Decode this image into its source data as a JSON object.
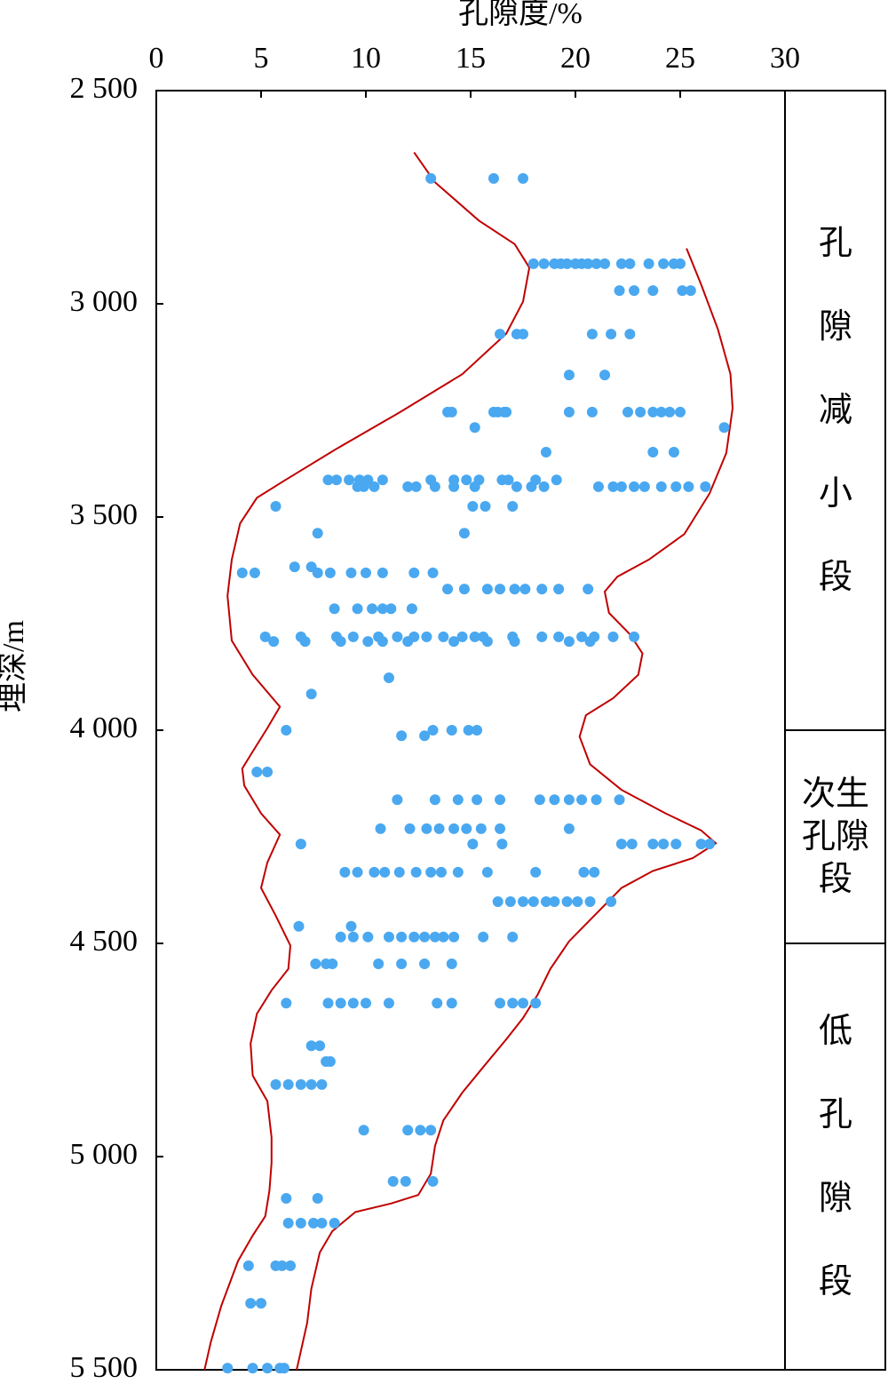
{
  "chart_data": {
    "type": "scatter",
    "x_label": "孔隙度/%",
    "y_label": "埋深/m",
    "xlim": [
      0,
      30
    ],
    "xticks": [
      0,
      5,
      10,
      15,
      20,
      25,
      30
    ],
    "ylim": [
      2500,
      5500
    ],
    "y_inverted": true,
    "yticks": [
      {
        "value": 2500,
        "label": "2 500"
      },
      {
        "value": 3000,
        "label": "3 000"
      },
      {
        "value": 3500,
        "label": "3 500"
      },
      {
        "value": 4000,
        "label": "4 000"
      },
      {
        "value": 4500,
        "label": "4 500"
      },
      {
        "value": 5000,
        "label": "5 000"
      },
      {
        "value": 5500,
        "label": "5 500"
      }
    ],
    "color": "#4aa8f0",
    "groups": [
      {
        "depth": 2706,
        "porosity": [
          13.1,
          16.1,
          17.5
        ]
      },
      {
        "depth": 2906,
        "porosity": [
          18.0,
          18.5,
          19.0,
          19.3,
          19.6,
          20.0,
          20.3,
          20.6,
          21.0,
          21.4,
          22.2,
          22.6,
          23.5,
          24.2,
          24.7,
          25.0
        ]
      },
      {
        "depth": 2969,
        "porosity": [
          22.1,
          22.8,
          23.7,
          25.1,
          25.5
        ]
      },
      {
        "depth": 3071,
        "porosity": [
          16.4,
          17.2,
          17.5,
          20.8,
          21.7,
          22.6
        ]
      },
      {
        "depth": 3167,
        "porosity": [
          19.7,
          21.4
        ]
      },
      {
        "depth": 3254,
        "porosity": [
          13.9,
          14.1,
          16.1,
          16.3,
          16.6,
          16.7,
          19.7,
          20.8,
          22.5,
          23.1,
          23.7,
          24.1,
          24.5,
          25.0
        ]
      },
      {
        "depth": 3290,
        "porosity": [
          15.2,
          27.1
        ]
      },
      {
        "depth": 3348,
        "porosity": [
          18.6,
          23.7,
          24.7
        ]
      },
      {
        "depth": 3413,
        "porosity": [
          8.2,
          8.6,
          9.2,
          9.7,
          10.1,
          10.8,
          13.1,
          14.2,
          14.8,
          15.4,
          16.5,
          16.8,
          18.1,
          19.1
        ]
      },
      {
        "depth": 3429,
        "porosity": [
          9.6,
          9.9,
          10.4,
          12.0,
          12.4,
          13.3,
          14.2,
          15.2,
          17.2,
          17.9,
          18.5,
          21.1,
          21.8,
          22.2,
          22.8,
          23.3,
          24.1,
          24.8,
          25.4,
          26.2
        ]
      },
      {
        "depth": 3475,
        "porosity": [
          5.7,
          15.1,
          15.7,
          17.0
        ]
      },
      {
        "depth": 3538,
        "porosity": [
          7.7,
          14.7
        ]
      },
      {
        "depth": 3617,
        "porosity": [
          6.6,
          7.4
        ]
      },
      {
        "depth": 3631,
        "porosity": [
          4.1,
          4.7,
          7.7,
          8.3,
          9.3,
          10.0,
          10.8,
          12.3,
          13.2
        ]
      },
      {
        "depth": 3669,
        "porosity": [
          13.9,
          14.7,
          15.8,
          16.4,
          17.1,
          17.6,
          18.4,
          19.2,
          20.6
        ]
      },
      {
        "depth": 3715,
        "porosity": [
          8.5,
          9.6,
          10.3,
          10.8,
          11.2,
          12.2
        ]
      },
      {
        "depth": 3781,
        "porosity": [
          5.2,
          6.9,
          8.6,
          9.4,
          10.6,
          11.5,
          12.3,
          12.9,
          13.7,
          14.6,
          15.2,
          15.6,
          17.0,
          18.4,
          19.2,
          20.3,
          20.9,
          21.8,
          22.8
        ]
      },
      {
        "depth": 3792,
        "porosity": [
          5.6,
          7.1,
          8.8,
          10.1,
          10.8,
          12.0,
          14.2,
          15.8,
          17.1,
          19.7,
          20.7
        ]
      },
      {
        "depth": 3877,
        "porosity": [
          11.1
        ]
      },
      {
        "depth": 3915,
        "porosity": [
          7.4
        ]
      },
      {
        "depth": 4000,
        "porosity": [
          6.2,
          13.2,
          14.1,
          14.9,
          15.3
        ]
      },
      {
        "depth": 4013,
        "porosity": [
          11.7,
          12.8
        ]
      },
      {
        "depth": 4098,
        "porosity": [
          4.8,
          5.3
        ]
      },
      {
        "depth": 4163,
        "porosity": [
          11.5,
          13.3,
          14.4,
          15.3,
          16.4,
          18.3,
          19.0,
          19.7,
          20.3,
          21.0,
          22.1
        ]
      },
      {
        "depth": 4231,
        "porosity": [
          10.7,
          12.1,
          12.9,
          13.5,
          14.2,
          14.8,
          15.5,
          16.4,
          19.7
        ]
      },
      {
        "depth": 4267,
        "porosity": [
          6.9,
          15.1,
          16.5,
          22.2,
          22.7,
          23.7,
          24.2,
          24.8,
          26.0,
          26.4
        ]
      },
      {
        "depth": 4333,
        "porosity": [
          9.0,
          9.6,
          10.4,
          10.9,
          11.6,
          12.4,
          13.1,
          13.6,
          14.4,
          15.8,
          18.1,
          20.4,
          20.9
        ]
      },
      {
        "depth": 4402,
        "porosity": [
          16.3,
          16.9,
          17.5,
          18.0,
          18.6,
          19.0,
          19.6,
          20.1,
          20.7,
          21.7
        ]
      },
      {
        "depth": 4460,
        "porosity": [
          6.8,
          9.3
        ]
      },
      {
        "depth": 4485,
        "porosity": [
          8.8,
          9.4,
          10.1,
          11.1,
          11.7,
          12.3,
          12.8,
          13.3,
          13.7,
          14.2,
          15.6,
          17.0
        ]
      },
      {
        "depth": 4548,
        "porosity": [
          7.6,
          8.1,
          8.4,
          10.6,
          11.7,
          12.8,
          14.1
        ]
      },
      {
        "depth": 4640,
        "porosity": [
          6.2,
          8.2,
          8.8,
          9.4,
          10.0,
          11.1,
          13.4,
          14.1,
          16.4,
          17.0,
          17.5,
          18.1
        ]
      },
      {
        "depth": 4740,
        "porosity": [
          7.4,
          7.8
        ]
      },
      {
        "depth": 4777,
        "porosity": [
          8.1,
          8.3
        ]
      },
      {
        "depth": 4831,
        "porosity": [
          5.7,
          6.3,
          6.9,
          7.4,
          7.9
        ]
      },
      {
        "depth": 4938,
        "porosity": [
          9.9,
          12.0,
          12.6,
          13.1
        ]
      },
      {
        "depth": 5058,
        "porosity": [
          11.3,
          11.9,
          13.2
        ]
      },
      {
        "depth": 5098,
        "porosity": [
          6.2,
          7.7
        ]
      },
      {
        "depth": 5156,
        "porosity": [
          6.3,
          6.9,
          7.5,
          7.9,
          8.5
        ]
      },
      {
        "depth": 5256,
        "porosity": [
          4.4,
          5.7,
          6.0,
          6.4
        ]
      },
      {
        "depth": 5344,
        "porosity": [
          4.5,
          5.0
        ]
      },
      {
        "depth": 5496,
        "porosity": [
          3.4,
          4.6,
          5.3,
          5.9,
          6.1
        ]
      }
    ],
    "envelopes": [
      {
        "color": "#c00000",
        "porosity": [
          12.3,
          13.3,
          15.4,
          17.1,
          17.8,
          17.5,
          16.7,
          14.6,
          11.6,
          8.6,
          6.1,
          4.8,
          4.0,
          3.6,
          3.4,
          3.6,
          4.6,
          5.9,
          5.3,
          4.6,
          4.1,
          4.2,
          5.0,
          5.9,
          5.3,
          5.0,
          5.7,
          6.4,
          6.3,
          5.5,
          4.8,
          4.5,
          4.6,
          5.3,
          5.5,
          5.5,
          5.4,
          5.2,
          4.6,
          3.9,
          3.1,
          2.6,
          2.3
        ],
        "depth": [
          2645,
          2715,
          2805,
          2860,
          2915,
          2995,
          3070,
          3165,
          3255,
          3340,
          3415,
          3455,
          3515,
          3600,
          3685,
          3790,
          3870,
          3945,
          3995,
          4050,
          4090,
          4130,
          4195,
          4245,
          4310,
          4370,
          4435,
          4505,
          4560,
          4610,
          4665,
          4735,
          4810,
          4870,
          4955,
          5015,
          5080,
          5140,
          5185,
          5245,
          5350,
          5435,
          5500
        ]
      },
      {
        "color": "#c00000",
        "porosity": [
          25.3,
          26.0,
          26.8,
          27.4,
          27.5,
          27.2,
          26.4,
          25.2,
          23.5,
          22.0,
          21.4,
          21.6,
          22.6,
          23.2,
          23.0,
          21.8,
          20.5,
          20.2,
          20.7,
          22.2,
          24.3,
          26.0,
          26.7,
          25.6,
          23.7,
          22.2,
          20.9,
          19.7,
          18.8,
          18.2,
          17.5,
          16.7,
          15.6,
          14.6,
          13.7,
          13.3,
          13.1,
          12.5,
          11.2,
          9.5,
          8.4,
          7.8,
          7.4,
          7.2,
          6.7
        ],
        "depth": [
          2870,
          2955,
          3060,
          3165,
          3245,
          3350,
          3445,
          3540,
          3600,
          3640,
          3675,
          3725,
          3775,
          3820,
          3870,
          3925,
          3965,
          4015,
          4080,
          4140,
          4195,
          4235,
          4265,
          4300,
          4330,
          4370,
          4435,
          4495,
          4560,
          4620,
          4675,
          4725,
          4790,
          4850,
          4915,
          4975,
          5040,
          5090,
          5110,
          5130,
          5175,
          5225,
          5310,
          5390,
          5500
        ]
      }
    ],
    "zones": [
      {
        "label": "孔隙减小段",
        "from": 2500,
        "to": 4000
      },
      {
        "label": "次生孔隙段",
        "from": 4000,
        "to": 4500
      },
      {
        "label": "低孔隙段",
        "from": 4500,
        "to": 5500
      }
    ]
  }
}
